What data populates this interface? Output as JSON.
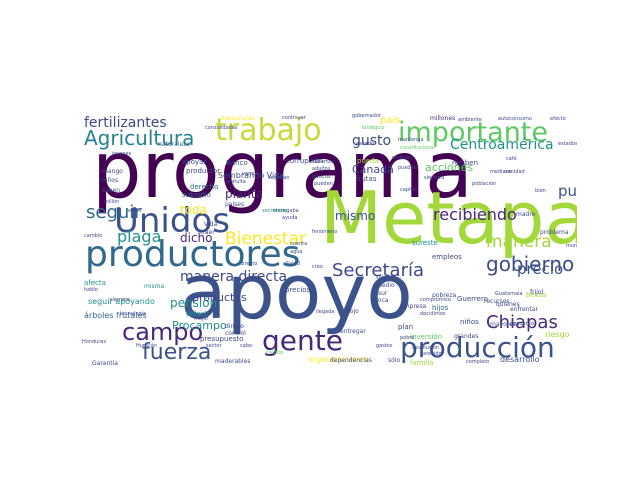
{
  "palette": {
    "dark_purple": "#440154",
    "indigo": "#3b528b",
    "teal": "#21918c",
    "green": "#5ec962",
    "lime": "#a2d83a",
    "yellow": "#fde725"
  },
  "words": [
    {
      "text": "programa",
      "color": "#440154"
    },
    {
      "text": "Metapa",
      "color": "#a2d83a"
    },
    {
      "text": "apoyo",
      "color": "#3b528b"
    },
    {
      "text": "productores",
      "color": "#31688e"
    },
    {
      "text": "Unidos",
      "color": "#3b528b"
    },
    {
      "text": "trabajo",
      "color": "#c8d93a"
    },
    {
      "text": "importante",
      "color": "#5ec962"
    },
    {
      "text": "producción",
      "color": "#3b528b"
    },
    {
      "text": "gente",
      "color": "#482878"
    },
    {
      "text": "Agricultura",
      "color": "#26828e"
    },
    {
      "text": "campo",
      "color": "#482878"
    },
    {
      "text": "gobierno",
      "color": "#3e4a89"
    },
    {
      "text": "Chiapas",
      "color": "#482878"
    },
    {
      "text": "fuerza",
      "color": "#3b528b"
    },
    {
      "text": "Secretaría",
      "color": "#3e4a89"
    },
    {
      "text": "recibiendo",
      "color": "#482878"
    },
    {
      "text": "Bienestar",
      "color": "#fde725"
    },
    {
      "text": "manera",
      "color": "#a2d83a"
    },
    {
      "text": "fertilizantes",
      "color": "#3e4a89"
    },
    {
      "text": "Centroamérica",
      "color": "#21918c"
    },
    {
      "text": "seguir",
      "color": "#31688e"
    },
    {
      "text": "plaga",
      "color": "#21918c"
    },
    {
      "text": "pueblo",
      "color": "#3b528b"
    },
    {
      "text": "precio",
      "color": "#3b528b"
    },
    {
      "text": "manera directa",
      "color": "#3e4a89"
    },
    {
      "text": "mismo",
      "color": "#3b528b"
    },
    {
      "text": "gusto",
      "color": "#3e4a89"
    },
    {
      "text": "Canadá",
      "color": "#3e4a89"
    },
    {
      "text": "dicho",
      "color": "#482878"
    },
    {
      "text": "toda",
      "color": "#fde725"
    },
    {
      "text": "planta",
      "color": "#482878"
    },
    {
      "text": "pensión",
      "color": "#21918c"
    },
    {
      "text": "Procampo",
      "color": "#21918c"
    },
    {
      "text": "productos",
      "color": "#3e4a89"
    },
    {
      "text": "acciones",
      "color": "#5ec962"
    },
    {
      "text": "país",
      "color": "#fde725"
    },
    {
      "text": "Sembrando Vida",
      "color": "#3e4a89"
    },
    {
      "text": "seguir apoyando",
      "color": "#21918c"
    },
    {
      "text": "organizaciones",
      "color": "#fde725"
    },
    {
      "text": "árboles frutales",
      "color": "#31688e"
    },
    {
      "text": "desarrollo",
      "color": "#3b528b"
    },
    {
      "text": "presupuesto",
      "color": "#3e4a89"
    },
    {
      "text": "inversión",
      "color": "#5ec962"
    },
    {
      "text": "empleos",
      "color": "#3e4a89"
    },
    {
      "text": "plan",
      "color": "#3e4a89"
    },
    {
      "text": "Guerrero",
      "color": "#3e4a89"
    },
    {
      "text": "niños",
      "color": "#3e4a89"
    },
    {
      "text": "hijos",
      "color": "#31688e"
    },
    {
      "text": "becas",
      "color": "#a2d83a"
    },
    {
      "text": "diésel",
      "color": "#21918c"
    },
    {
      "text": "recursos",
      "color": "#3e4a89"
    },
    {
      "text": "sureste",
      "color": "#21918c"
    },
    {
      "text": "derecho",
      "color": "#31688e"
    },
    {
      "text": "productor",
      "color": "#3e4a89"
    },
    {
      "text": "subsidio",
      "color": "#31688e"
    },
    {
      "text": "apoyar",
      "color": "#3e4a89"
    },
    {
      "text": "misma",
      "color": "#21918c"
    },
    {
      "text": "naturaleza",
      "color": "#31688e"
    },
    {
      "text": "frutas",
      "color": "#3e4a89"
    },
    {
      "text": "reciben",
      "color": "#3e4a89"
    },
    {
      "text": "Banco",
      "color": "#3e4a89"
    },
    {
      "text": "corrupción",
      "color": "#3e4a89"
    },
    {
      "text": "pueda",
      "color": "#a2d83a"
    },
    {
      "text": "mercancías",
      "color": "#fde725"
    },
    {
      "text": "millones",
      "color": "#482878"
    },
    {
      "text": "afecta",
      "color": "#21918c"
    },
    {
      "text": "precios",
      "color": "#3e4a89"
    },
    {
      "text": "maderables",
      "color": "#3e4a89"
    },
    {
      "text": "entregar",
      "color": "#3e4a89"
    },
    {
      "text": "dinero",
      "color": "#3e4a89"
    },
    {
      "text": "control",
      "color": "#3e4a89"
    },
    {
      "text": "pobreza",
      "color": "#3e4a89"
    },
    {
      "text": "Garantía",
      "color": "#3e4a89"
    },
    {
      "text": "mango",
      "color": "#3e4a89"
    },
    {
      "text": "saben",
      "color": "#3e4a89"
    },
    {
      "text": "niños",
      "color": "#3e4a89"
    },
    {
      "text": "familia",
      "color": "#a2d83a"
    },
    {
      "text": "sólo",
      "color": "#3e4a89"
    },
    {
      "text": "dependencias",
      "color": "#3e4a89"
    },
    {
      "text": "empresa",
      "color": "#3e4a89"
    },
    {
      "text": "flojo",
      "color": "#3e4a89"
    },
    {
      "text": "Vida",
      "color": "#3e4a89"
    },
    {
      "text": "traer",
      "color": "#3e4a89"
    },
    {
      "text": "países",
      "color": "#3e4a89"
    },
    {
      "text": "Salud",
      "color": "#3e4a89"
    },
    {
      "text": "medio",
      "color": "#3e4a89"
    },
    {
      "text": "sur",
      "color": "#3e4a89"
    },
    {
      "text": "poca",
      "color": "#3e4a89"
    },
    {
      "text": "mayores",
      "color": "#3e4a89"
    },
    {
      "text": "Guatemala",
      "color": "#3e4a89"
    },
    {
      "text": "frijol",
      "color": "#3e4a89"
    },
    {
      "text": "enfrentar",
      "color": "#3e4a89"
    },
    {
      "text": "quiénes",
      "color": "#3e4a89"
    },
    {
      "text": "grandes",
      "color": "#3e4a89"
    },
    {
      "text": "problema",
      "color": "#3e4a89"
    },
    {
      "text": "madre",
      "color": "#3e4a89"
    },
    {
      "text": "riesgo",
      "color": "#a2d83a"
    },
    {
      "text": "mejor",
      "color": "#3e4a89"
    },
    {
      "text": "gobernador",
      "color": "#3e4a89"
    },
    {
      "text": "continuar",
      "color": "#3e4a89"
    },
    {
      "text": "ambiente",
      "color": "#3e4a89"
    },
    {
      "text": "autoconsumo",
      "color": "#3e4a89"
    },
    {
      "text": "efecto",
      "color": "#3e4a89"
    },
    {
      "text": "biológico",
      "color": "#5ec962"
    },
    {
      "text": "consolidadas",
      "color": "#3e4a89"
    },
    {
      "text": "jóvenes",
      "color": "#3e4a89"
    },
    {
      "text": "mantenga",
      "color": "#3e4a89"
    },
    {
      "text": "pasado",
      "color": "#3e4a89"
    },
    {
      "text": "constitucional",
      "color": "#5ec962"
    },
    {
      "text": "gratuita",
      "color": "#3e4a89"
    },
    {
      "text": "entregaba",
      "color": "#3e4a89"
    },
    {
      "text": "secretario",
      "color": "#21918c"
    },
    {
      "text": "pueden",
      "color": "#3e4a89"
    },
    {
      "text": "básicos",
      "color": "#3e4a89"
    },
    {
      "text": "adultos",
      "color": "#3e4a89"
    },
    {
      "text": "sabemos",
      "color": "#3e4a89"
    },
    {
      "text": "vamos",
      "color": "#3e4a89"
    },
    {
      "text": "llegaban",
      "color": "#3e4a89"
    },
    {
      "text": "fenómeno",
      "color": "#3e4a89"
    },
    {
      "text": "millón",
      "color": "#3e4a89"
    },
    {
      "text": "recibir",
      "color": "#3e4a89"
    },
    {
      "text": "directo",
      "color": "#3e4a89"
    },
    {
      "text": "siembra",
      "color": "#3e4a89"
    },
    {
      "text": "capital",
      "color": "#3e4a89"
    },
    {
      "text": "puedan",
      "color": "#3e4a89"
    },
    {
      "text": "recibían",
      "color": "#3e4a89"
    },
    {
      "text": "mediano",
      "color": "#3e4a89"
    },
    {
      "text": "sanidad",
      "color": "#3e4a89"
    },
    {
      "text": "bien",
      "color": "#3e4a89"
    },
    {
      "text": "población",
      "color": "#3e4a89"
    },
    {
      "text": "Huracán",
      "color": "#3e4a89"
    },
    {
      "text": "agua",
      "color": "#3e4a89"
    },
    {
      "text": "cuenta",
      "color": "#3e4a89"
    },
    {
      "text": "creo",
      "color": "#3e4a89"
    },
    {
      "text": "solo",
      "color": "#3e4a89"
    },
    {
      "text": "pobre",
      "color": "#3e4a89"
    },
    {
      "text": "compromiso",
      "color": "#3e4a89"
    },
    {
      "text": "completo",
      "color": "#3e4a89"
    },
    {
      "text": "pequeños",
      "color": "#3e4a89"
    },
    {
      "text": "crédito",
      "color": "#5ec962"
    },
    {
      "text": "cambio",
      "color": "#3e4a89"
    },
    {
      "text": "siempre",
      "color": "#3e4a89"
    },
    {
      "text": "sector",
      "color": "#3e4a89"
    },
    {
      "text": "cabo",
      "color": "#3e4a89"
    },
    {
      "text": "gastos",
      "color": "#3e4a89"
    },
    {
      "text": "llegada",
      "color": "#3e4a89"
    },
    {
      "text": "ayuda",
      "color": "#3e4a89"
    },
    {
      "text": "municipal",
      "color": "#3e4a89"
    },
    {
      "text": "café",
      "color": "#3e4a89"
    },
    {
      "text": "estados",
      "color": "#3e4a89"
    },
    {
      "text": "decidimos",
      "color": "#3e4a89"
    },
    {
      "text": "Honduras",
      "color": "#3e4a89"
    },
    {
      "text": "tecnología",
      "color": "#3e4a89"
    },
    {
      "text": "hablo",
      "color": "#3e4a89"
    },
    {
      "text": "devolución",
      "color": "#3e4a89"
    },
    {
      "text": "parecido",
      "color": "#3e4a89"
    }
  ]
}
